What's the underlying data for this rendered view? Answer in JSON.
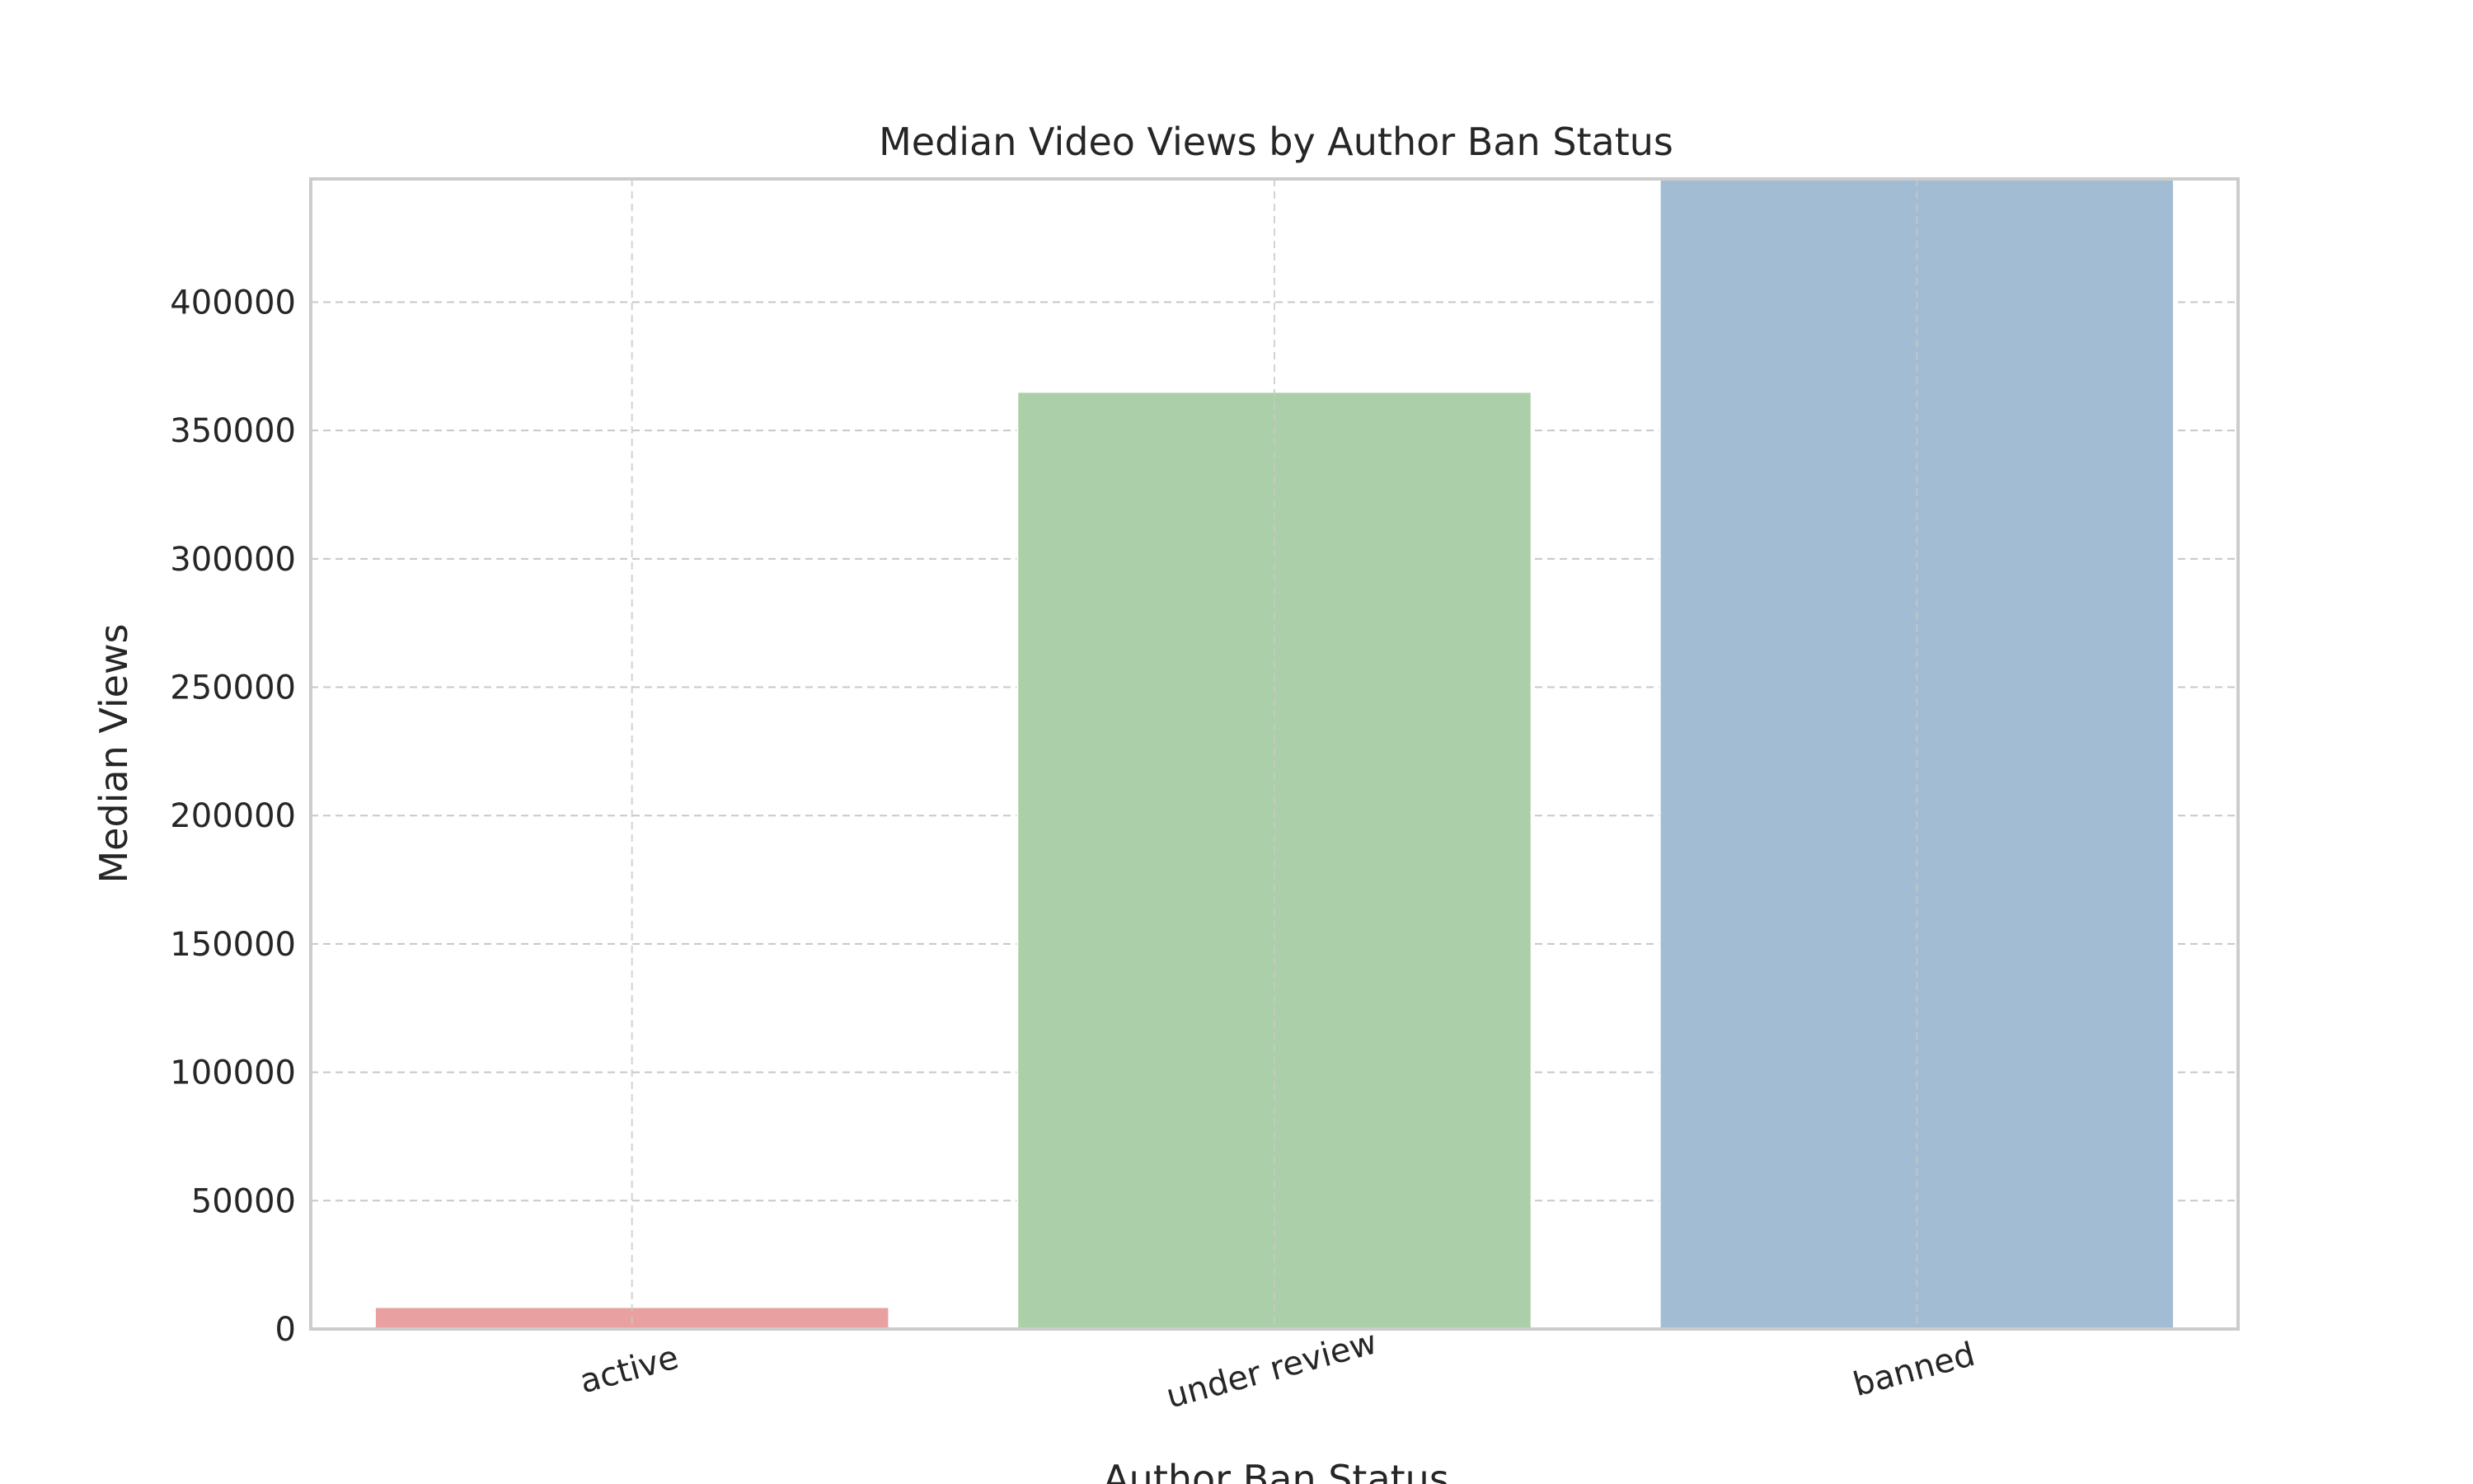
{
  "chart_data": {
    "type": "bar",
    "title": "Median Video Views by Author Ban Status",
    "xlabel": "Author Ban Status",
    "ylabel": "Median Views",
    "categories": [
      "active",
      "under review",
      "banned"
    ],
    "values": [
      8500,
      365000,
      448000
    ],
    "colors": [
      "#e8a0a0",
      "#abcfa8",
      "#a2bcd4"
    ],
    "ylim": [
      0,
      448000
    ],
    "yticks": [
      "0",
      "50000",
      "100000",
      "150000",
      "200000",
      "250000",
      "300000",
      "350000",
      "400000"
    ],
    "grid": true,
    "legend": "none"
  }
}
